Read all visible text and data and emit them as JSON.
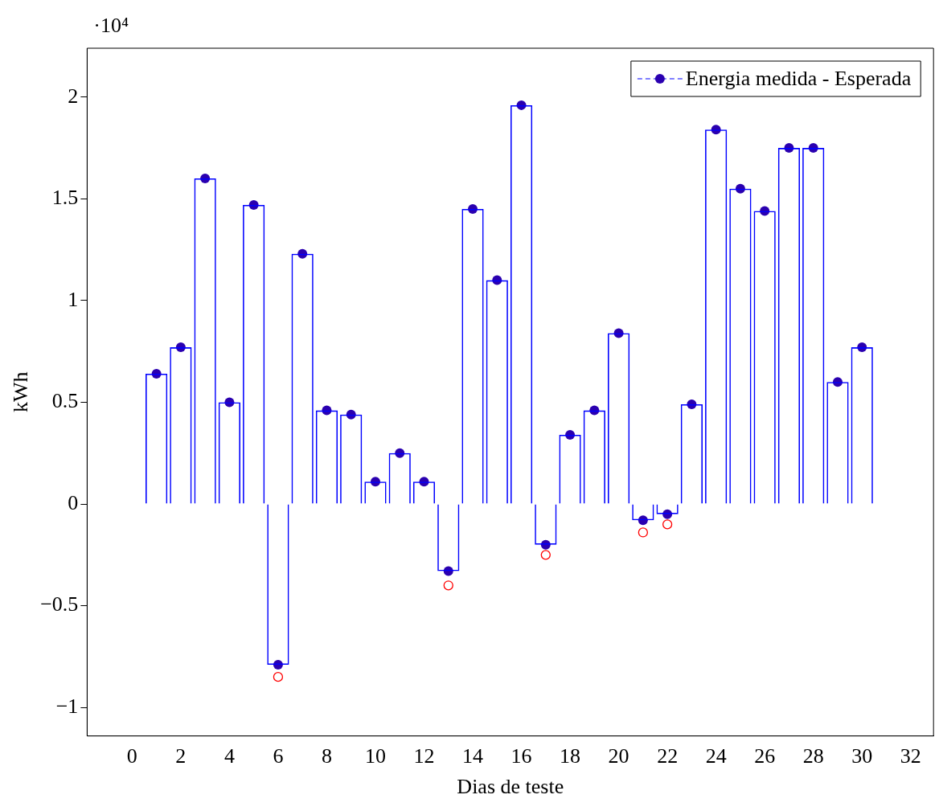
{
  "chart_data": {
    "type": "bar",
    "xlabel": "Dias de teste",
    "ylabel": "kWh",
    "annotations": [
      "·10⁴"
    ],
    "x": [
      1,
      2,
      3,
      4,
      5,
      6,
      7,
      8,
      9,
      10,
      11,
      12,
      13,
      14,
      15,
      16,
      17,
      18,
      19,
      20,
      21,
      22,
      23,
      24,
      25,
      26,
      27,
      28,
      29,
      30
    ],
    "series": [
      {
        "color": "#0000ff",
        "values": [
          0.64,
          0.77,
          1.6,
          0.5,
          1.47,
          -0.79,
          1.23,
          0.46,
          0.44,
          0.11,
          0.25,
          0.11,
          -0.33,
          1.45,
          1.1,
          1.96,
          -0.2,
          0.34,
          0.46,
          0.84,
          -0.08,
          -0.05,
          0.49,
          1.84,
          1.55,
          1.44,
          1.75,
          1.75,
          0.6,
          0.77
        ]
      },
      {
        "type": "scatter",
        "name": "Energia medida - Esperada",
        "color": "#2a00b0",
        "marker": "circle",
        "line_style": "dashed",
        "values": [
          0.64,
          0.77,
          1.6,
          0.5,
          1.47,
          -0.79,
          1.23,
          0.46,
          0.44,
          0.11,
          0.25,
          0.11,
          -0.33,
          1.45,
          1.1,
          1.96,
          -0.2,
          0.34,
          0.46,
          0.84,
          -0.08,
          -0.05,
          0.49,
          1.84,
          1.55,
          1.44,
          1.75,
          1.75,
          0.6,
          0.77
        ]
      },
      {
        "type": "scatter",
        "color": "#ff0000",
        "marker": "circle",
        "x": [
          6,
          13,
          17,
          21,
          22
        ],
        "values": [
          -0.85,
          -0.4,
          -0.25,
          -0.14,
          -0.1
        ]
      }
    ],
    "xlim": [
      -1.85,
      32.94
    ],
    "xticks": [
      0,
      2,
      4,
      6,
      8,
      10,
      12,
      14,
      16,
      18,
      20,
      22,
      24,
      26,
      28,
      30,
      32
    ],
    "ylim": [
      -1.14,
      2.24
    ],
    "yticks": [
      {
        "value": -1,
        "label": "−1"
      },
      {
        "value": -0.5,
        "label": "−0.5"
      },
      0,
      0.5,
      1,
      1.5,
      2
    ],
    "legend": "top right"
  }
}
